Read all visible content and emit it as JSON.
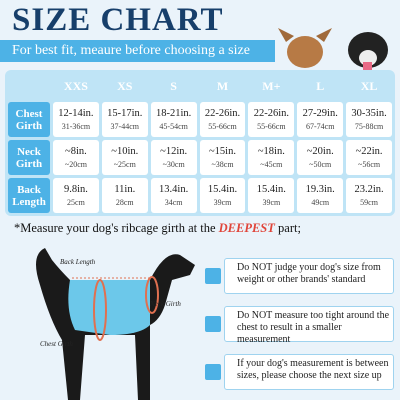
{
  "header": {
    "title": "SIZE CHART",
    "subtitle": "For best fit, meaure before choosing a size"
  },
  "table": {
    "columns": [
      "XXS",
      "XS",
      "S",
      "M",
      "M+",
      "L",
      "XL"
    ],
    "rows": [
      {
        "label": "Chest Girth",
        "cells": [
          {
            "main": "12-14in.",
            "sub": "31-36cm"
          },
          {
            "main": "15-17in.",
            "sub": "37-44cm"
          },
          {
            "main": "18-21in.",
            "sub": "45-54cm"
          },
          {
            "main": "22-26in.",
            "sub": "55-66cm"
          },
          {
            "main": "22-26in.",
            "sub": "55-66cm"
          },
          {
            "main": "27-29in.",
            "sub": "67-74cm"
          },
          {
            "main": "30-35in.",
            "sub": "75-88cm"
          }
        ]
      },
      {
        "label": "Neck Girth",
        "cells": [
          {
            "main": "~8in.",
            "sub": "~20cm"
          },
          {
            "main": "~10in.",
            "sub": "~25cm"
          },
          {
            "main": "~12in.",
            "sub": "~30cm"
          },
          {
            "main": "~15in.",
            "sub": "~38cm"
          },
          {
            "main": "~18in.",
            "sub": "~45cm"
          },
          {
            "main": "~20in.",
            "sub": "~50cm"
          },
          {
            "main": "~22in.",
            "sub": "~56cm"
          }
        ]
      },
      {
        "label": "Back Length",
        "cells": [
          {
            "main": "9.8in.",
            "sub": "25cm"
          },
          {
            "main": "11in.",
            "sub": "28cm"
          },
          {
            "main": "13.4in.",
            "sub": "34cm"
          },
          {
            "main": "15.4in.",
            "sub": "39cm"
          },
          {
            "main": "15.4in.",
            "sub": "39cm"
          },
          {
            "main": "19.3in.",
            "sub": "49cm"
          },
          {
            "main": "23.2in.",
            "sub": "59cm"
          }
        ]
      }
    ]
  },
  "note": {
    "before": "*Measure your dog's ribcage girth at the ",
    "emphasis": "DEEPEST",
    "after": " part;"
  },
  "diagram": {
    "back": "Back Length",
    "neck": "Neck Girth",
    "chest": "Chest Girth"
  },
  "tips": [
    "Do NOT judge your dog's size from weight or other brands' standard",
    "Do NOT measure too tight around the chest to result in a smaller measurement",
    "If your dog's measurement is between sizes, please choose the next size up"
  ]
}
